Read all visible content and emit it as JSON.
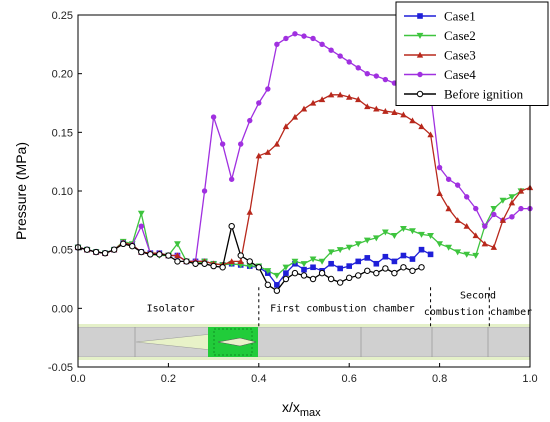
{
  "chart_data": {
    "type": "line",
    "xlabel": "x/x",
    "xlabel_sub": "max",
    "ylabel": "Pressure (MPa)",
    "xlim": [
      0.0,
      1.0
    ],
    "ylim": [
      -0.05,
      0.25
    ],
    "x_ticks": [
      "0.0",
      "0.2",
      "0.4",
      "0.6",
      "0.8",
      "1.0"
    ],
    "y_ticks": [
      "-0.05",
      "0.00",
      "0.05",
      "0.10",
      "0.15",
      "0.20",
      "0.25"
    ],
    "legend_position": "top-right",
    "series": [
      {
        "name": "Case1",
        "color": "#1f1fd8",
        "marker": "square",
        "points": [
          [
            0.0,
            0.052
          ],
          [
            0.02,
            0.05
          ],
          [
            0.04,
            0.048
          ],
          [
            0.06,
            0.047
          ],
          [
            0.08,
            0.05
          ],
          [
            0.1,
            0.056
          ],
          [
            0.12,
            0.054
          ],
          [
            0.14,
            0.048
          ],
          [
            0.16,
            0.047
          ],
          [
            0.18,
            0.047
          ],
          [
            0.2,
            0.045
          ],
          [
            0.22,
            0.045
          ],
          [
            0.24,
            0.04
          ],
          [
            0.26,
            0.04
          ],
          [
            0.28,
            0.04
          ],
          [
            0.3,
            0.038
          ],
          [
            0.32,
            0.037
          ],
          [
            0.34,
            0.038
          ],
          [
            0.36,
            0.037
          ],
          [
            0.38,
            0.036
          ],
          [
            0.4,
            0.035
          ],
          [
            0.42,
            0.03
          ],
          [
            0.44,
            0.02
          ],
          [
            0.46,
            0.03
          ],
          [
            0.48,
            0.038
          ],
          [
            0.5,
            0.033
          ],
          [
            0.52,
            0.035
          ],
          [
            0.54,
            0.032
          ],
          [
            0.56,
            0.038
          ],
          [
            0.58,
            0.034
          ],
          [
            0.6,
            0.036
          ],
          [
            0.62,
            0.04
          ],
          [
            0.64,
            0.043
          ],
          [
            0.66,
            0.038
          ],
          [
            0.68,
            0.044
          ],
          [
            0.7,
            0.04
          ],
          [
            0.72,
            0.045
          ],
          [
            0.74,
            0.042
          ],
          [
            0.76,
            0.05
          ],
          [
            0.78,
            0.046
          ]
        ]
      },
      {
        "name": "Case2",
        "color": "#3ec43e",
        "marker": "triangle-down",
        "points": [
          [
            0.0,
            0.052
          ],
          [
            0.02,
            0.05
          ],
          [
            0.04,
            0.048
          ],
          [
            0.06,
            0.047
          ],
          [
            0.08,
            0.05
          ],
          [
            0.1,
            0.057
          ],
          [
            0.12,
            0.055
          ],
          [
            0.14,
            0.081
          ],
          [
            0.16,
            0.046
          ],
          [
            0.18,
            0.045
          ],
          [
            0.2,
            0.045
          ],
          [
            0.22,
            0.055
          ],
          [
            0.24,
            0.04
          ],
          [
            0.26,
            0.038
          ],
          [
            0.28,
            0.04
          ],
          [
            0.3,
            0.038
          ],
          [
            0.32,
            0.037
          ],
          [
            0.34,
            0.038
          ],
          [
            0.36,
            0.037
          ],
          [
            0.38,
            0.036
          ],
          [
            0.4,
            0.036
          ],
          [
            0.42,
            0.032
          ],
          [
            0.44,
            0.028
          ],
          [
            0.46,
            0.035
          ],
          [
            0.48,
            0.04
          ],
          [
            0.5,
            0.038
          ],
          [
            0.52,
            0.042
          ],
          [
            0.54,
            0.04
          ],
          [
            0.56,
            0.048
          ],
          [
            0.58,
            0.05
          ],
          [
            0.6,
            0.052
          ],
          [
            0.62,
            0.055
          ],
          [
            0.64,
            0.058
          ],
          [
            0.66,
            0.06
          ],
          [
            0.68,
            0.065
          ],
          [
            0.7,
            0.062
          ],
          [
            0.72,
            0.068
          ],
          [
            0.74,
            0.066
          ],
          [
            0.76,
            0.063
          ],
          [
            0.78,
            0.062
          ],
          [
            0.8,
            0.055
          ],
          [
            0.82,
            0.052
          ],
          [
            0.84,
            0.048
          ],
          [
            0.86,
            0.046
          ],
          [
            0.88,
            0.045
          ],
          [
            0.9,
            0.07
          ],
          [
            0.92,
            0.085
          ],
          [
            0.94,
            0.092
          ],
          [
            0.96,
            0.095
          ],
          [
            0.98,
            0.1
          ]
        ]
      },
      {
        "name": "Case3",
        "color": "#b8281c",
        "marker": "triangle-up",
        "points": [
          [
            0.0,
            0.052
          ],
          [
            0.02,
            0.05
          ],
          [
            0.04,
            0.048
          ],
          [
            0.06,
            0.047
          ],
          [
            0.08,
            0.05
          ],
          [
            0.1,
            0.056
          ],
          [
            0.12,
            0.054
          ],
          [
            0.14,
            0.048
          ],
          [
            0.16,
            0.047
          ],
          [
            0.18,
            0.047
          ],
          [
            0.2,
            0.045
          ],
          [
            0.22,
            0.045
          ],
          [
            0.24,
            0.04
          ],
          [
            0.26,
            0.04
          ],
          [
            0.28,
            0.04
          ],
          [
            0.3,
            0.038
          ],
          [
            0.32,
            0.037
          ],
          [
            0.34,
            0.04
          ],
          [
            0.36,
            0.04
          ],
          [
            0.38,
            0.082
          ],
          [
            0.4,
            0.13
          ],
          [
            0.42,
            0.133
          ],
          [
            0.44,
            0.14
          ],
          [
            0.46,
            0.155
          ],
          [
            0.48,
            0.163
          ],
          [
            0.5,
            0.17
          ],
          [
            0.52,
            0.175
          ],
          [
            0.54,
            0.178
          ],
          [
            0.56,
            0.182
          ],
          [
            0.58,
            0.182
          ],
          [
            0.6,
            0.18
          ],
          [
            0.62,
            0.178
          ],
          [
            0.64,
            0.172
          ],
          [
            0.66,
            0.17
          ],
          [
            0.68,
            0.168
          ],
          [
            0.7,
            0.167
          ],
          [
            0.72,
            0.165
          ],
          [
            0.74,
            0.16
          ],
          [
            0.76,
            0.155
          ],
          [
            0.78,
            0.148
          ],
          [
            0.8,
            0.098
          ],
          [
            0.82,
            0.085
          ],
          [
            0.84,
            0.075
          ],
          [
            0.86,
            0.07
          ],
          [
            0.88,
            0.062
          ],
          [
            0.9,
            0.055
          ],
          [
            0.92,
            0.052
          ],
          [
            0.94,
            0.075
          ],
          [
            0.96,
            0.09
          ],
          [
            0.98,
            0.1
          ],
          [
            1.0,
            0.103
          ]
        ]
      },
      {
        "name": "Case4",
        "color": "#a030e0",
        "marker": "circle",
        "points": [
          [
            0.0,
            0.052
          ],
          [
            0.02,
            0.05
          ],
          [
            0.04,
            0.048
          ],
          [
            0.06,
            0.047
          ],
          [
            0.08,
            0.05
          ],
          [
            0.1,
            0.056
          ],
          [
            0.12,
            0.054
          ],
          [
            0.14,
            0.07
          ],
          [
            0.16,
            0.047
          ],
          [
            0.18,
            0.047
          ],
          [
            0.2,
            0.045
          ],
          [
            0.22,
            0.045
          ],
          [
            0.24,
            0.04
          ],
          [
            0.26,
            0.04
          ],
          [
            0.28,
            0.1
          ],
          [
            0.3,
            0.163
          ],
          [
            0.32,
            0.14
          ],
          [
            0.34,
            0.11
          ],
          [
            0.36,
            0.14
          ],
          [
            0.38,
            0.16
          ],
          [
            0.4,
            0.175
          ],
          [
            0.42,
            0.187
          ],
          [
            0.44,
            0.225
          ],
          [
            0.46,
            0.23
          ],
          [
            0.48,
            0.234
          ],
          [
            0.5,
            0.232
          ],
          [
            0.52,
            0.23
          ],
          [
            0.54,
            0.225
          ],
          [
            0.56,
            0.22
          ],
          [
            0.58,
            0.215
          ],
          [
            0.6,
            0.21
          ],
          [
            0.62,
            0.205
          ],
          [
            0.64,
            0.2
          ],
          [
            0.66,
            0.198
          ],
          [
            0.68,
            0.195
          ],
          [
            0.7,
            0.192
          ],
          [
            0.72,
            0.19
          ],
          [
            0.74,
            0.187
          ],
          [
            0.76,
            0.185
          ],
          [
            0.78,
            0.183
          ],
          [
            0.8,
            0.12
          ],
          [
            0.82,
            0.11
          ],
          [
            0.84,
            0.105
          ],
          [
            0.86,
            0.095
          ],
          [
            0.88,
            0.085
          ],
          [
            0.9,
            0.07
          ],
          [
            0.92,
            0.08
          ],
          [
            0.94,
            0.075
          ],
          [
            0.96,
            0.078
          ],
          [
            0.98,
            0.085
          ],
          [
            1.0,
            0.085
          ]
        ]
      },
      {
        "name": "Before ignition",
        "color": "#000000",
        "marker": "circle-open",
        "points": [
          [
            0.0,
            0.052
          ],
          [
            0.02,
            0.05
          ],
          [
            0.04,
            0.048
          ],
          [
            0.06,
            0.047
          ],
          [
            0.08,
            0.05
          ],
          [
            0.1,
            0.055
          ],
          [
            0.12,
            0.053
          ],
          [
            0.14,
            0.048
          ],
          [
            0.16,
            0.046
          ],
          [
            0.18,
            0.046
          ],
          [
            0.2,
            0.045
          ],
          [
            0.22,
            0.04
          ],
          [
            0.24,
            0.04
          ],
          [
            0.26,
            0.038
          ],
          [
            0.28,
            0.038
          ],
          [
            0.3,
            0.036
          ],
          [
            0.32,
            0.035
          ],
          [
            0.34,
            0.07
          ],
          [
            0.36,
            0.045
          ],
          [
            0.38,
            0.04
          ],
          [
            0.4,
            0.035
          ],
          [
            0.42,
            0.02
          ],
          [
            0.44,
            0.015
          ],
          [
            0.46,
            0.025
          ],
          [
            0.48,
            0.03
          ],
          [
            0.5,
            0.028
          ],
          [
            0.52,
            0.025
          ],
          [
            0.54,
            0.03
          ],
          [
            0.56,
            0.025
          ],
          [
            0.58,
            0.022
          ],
          [
            0.6,
            0.026
          ],
          [
            0.62,
            0.028
          ],
          [
            0.64,
            0.032
          ],
          [
            0.66,
            0.03
          ],
          [
            0.68,
            0.034
          ],
          [
            0.7,
            0.03
          ],
          [
            0.72,
            0.035
          ],
          [
            0.74,
            0.032
          ],
          [
            0.76,
            0.035
          ]
        ]
      }
    ],
    "annotations": [
      {
        "text": "Isolator",
        "x": 0.205,
        "y": 0.0
      },
      {
        "text": "First combustion chamber",
        "x": 0.585,
        "y": 0.0
      },
      {
        "text": "Second",
        "x": 0.885,
        "y": 0.011
      },
      {
        "text": "combustion chamber",
        "x": 0.885,
        "y": -0.003
      }
    ],
    "region_boundaries_x": [
      0.4,
      0.78,
      0.91
    ]
  }
}
